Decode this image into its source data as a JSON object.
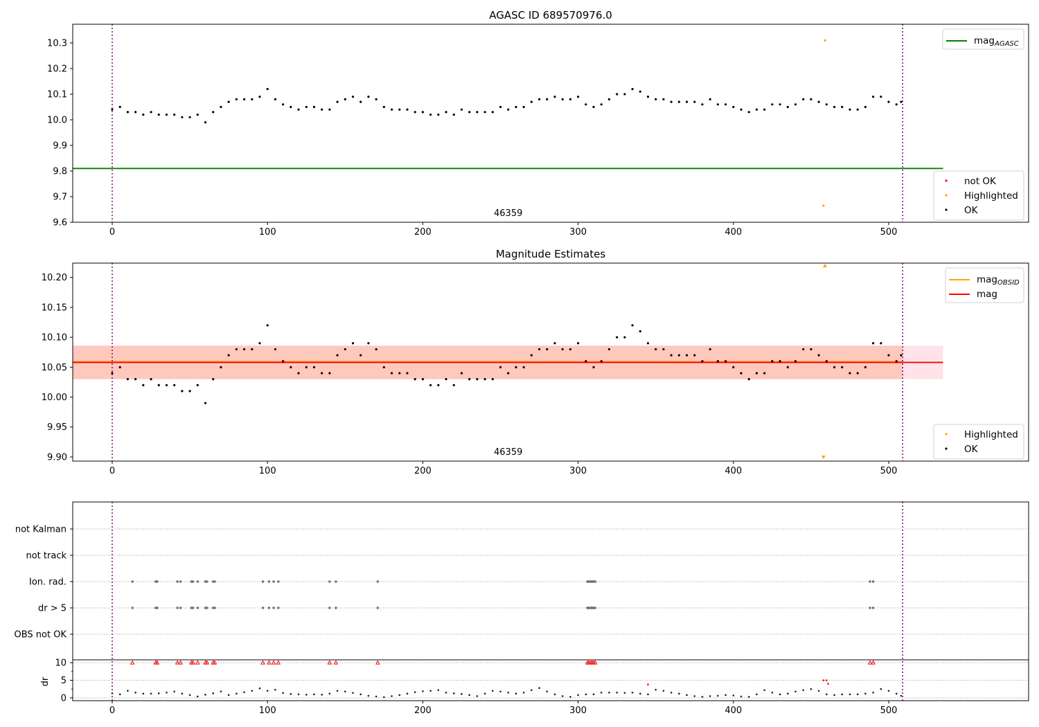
{
  "chart_data": [
    {
      "type": "scatter",
      "title": "AGASC ID 689570976.0",
      "xlim": [
        -25,
        590
      ],
      "ylim": [
        9.6,
        10.373
      ],
      "xticks": [
        "0",
        "100",
        "200",
        "300",
        "400",
        "500"
      ],
      "yticks": [
        "9.6",
        "9.7",
        "9.8",
        "9.9",
        "10.0",
        "10.1",
        "10.2",
        "10.3"
      ],
      "annotation": "46359",
      "annotation_x": 255,
      "obs_bounds": [
        0,
        509
      ],
      "mag_agasc": 9.81,
      "mag_agasc_xrange": [
        -25,
        535
      ],
      "highlighted": [
        {
          "x": 459,
          "y": 10.31
        },
        {
          "x": 458,
          "y": 9.665
        }
      ],
      "legend_lines": [
        {
          "label": "mag",
          "sub": "AGASC",
          "color": "#008000"
        }
      ],
      "legend_points": [
        {
          "label": "not OK",
          "color": "#ff0000"
        },
        {
          "label": "Highlighted",
          "color": "#ffa500"
        },
        {
          "label": "OK",
          "color": "#000000"
        }
      ]
    },
    {
      "type": "scatter",
      "title": "Magnitude Estimates",
      "xlim": [
        -25,
        590
      ],
      "ylim": [
        9.893,
        10.224
      ],
      "xticks": [
        "0",
        "100",
        "200",
        "300",
        "400",
        "500"
      ],
      "yticks": [
        "9.90",
        "9.95",
        "10.00",
        "10.05",
        "10.10",
        "10.15",
        "10.20"
      ],
      "annotation": "46359",
      "annotation_x": 255,
      "obs_bounds": [
        0,
        509
      ],
      "mag": 10.058,
      "mag_band": [
        10.03,
        10.086
      ],
      "mag_xrange": [
        -25,
        535
      ],
      "mag_obsid_band": [
        10.03,
        10.086
      ],
      "highlighted_clipped": [
        {
          "x": 459,
          "dir": "up"
        },
        {
          "x": 458,
          "dir": "down"
        }
      ],
      "legend_lines": [
        {
          "label": "mag",
          "sub": "OBSID",
          "color": "#ffa500"
        },
        {
          "label": "mag",
          "sub": "",
          "color": "#ff0000"
        }
      ],
      "legend_points": [
        {
          "label": "Highlighted",
          "color": "#ffa500"
        },
        {
          "label": "OK",
          "color": "#000000"
        }
      ]
    },
    {
      "type": "scatter",
      "title": "",
      "categories": [
        "OBS not OK",
        "dr > 5",
        "Ion. rad.",
        "not track",
        "not Kalman"
      ],
      "flag_x": {
        "dr > 5": [
          13,
          28,
          29,
          42,
          44,
          51,
          52,
          55,
          60,
          61,
          65,
          66,
          97,
          101,
          104,
          107,
          140,
          144,
          171,
          306,
          307,
          308,
          309,
          310,
          311,
          488,
          490
        ],
        "Ion. rad.": [
          13,
          28,
          29,
          42,
          44,
          51,
          52,
          55,
          60,
          61,
          65,
          66,
          97,
          101,
          104,
          107,
          140,
          144,
          171,
          306,
          307,
          308,
          309,
          310,
          311,
          488,
          490
        ],
        "not track": [],
        "not Kalman": [],
        "OBS not OK": []
      },
      "dr_label": "dr",
      "dr_ylim": [
        -0.8,
        10.8
      ],
      "dr_yticks": [
        "0",
        "5",
        "10"
      ],
      "dr_clipped_x": [
        13,
        28,
        29,
        42,
        44,
        51,
        52,
        55,
        60,
        61,
        65,
        66,
        97,
        101,
        104,
        107,
        140,
        144,
        171,
        306,
        307,
        308,
        309,
        310,
        311,
        488,
        490
      ],
      "dr_red_points": [
        {
          "x": 345,
          "y": 3.8
        },
        {
          "x": 458,
          "y": 5.0
        },
        {
          "x": 460,
          "y": 5.0
        },
        {
          "x": 461,
          "y": 4.0
        }
      ],
      "xticks": [
        "0",
        "100",
        "200",
        "300",
        "400",
        "500"
      ],
      "obs_bounds": [
        0,
        509
      ]
    }
  ],
  "series": {
    "x": [
      0,
      5,
      10,
      15,
      20,
      25,
      30,
      35,
      40,
      45,
      50,
      55,
      60,
      65,
      70,
      75,
      80,
      85,
      90,
      95,
      100,
      105,
      110,
      115,
      120,
      125,
      130,
      135,
      140,
      145,
      150,
      155,
      160,
      165,
      170,
      175,
      180,
      185,
      190,
      195,
      200,
      205,
      210,
      215,
      220,
      225,
      230,
      235,
      240,
      245,
      250,
      255,
      260,
      265,
      270,
      275,
      280,
      285,
      290,
      295,
      300,
      305,
      310,
      315,
      320,
      325,
      330,
      335,
      340,
      345,
      350,
      355,
      360,
      365,
      370,
      375,
      380,
      385,
      390,
      395,
      400,
      405,
      410,
      415,
      420,
      425,
      430,
      435,
      440,
      445,
      450,
      455,
      460,
      465,
      470,
      475,
      480,
      485,
      490,
      495,
      500,
      505,
      508
    ],
    "mag": [
      10.04,
      10.05,
      10.03,
      10.03,
      10.02,
      10.03,
      10.02,
      10.02,
      10.02,
      10.01,
      10.01,
      10.02,
      9.99,
      10.03,
      10.05,
      10.07,
      10.08,
      10.08,
      10.08,
      10.09,
      10.12,
      10.08,
      10.06,
      10.05,
      10.04,
      10.05,
      10.05,
      10.04,
      10.04,
      10.07,
      10.08,
      10.09,
      10.07,
      10.09,
      10.08,
      10.05,
      10.04,
      10.04,
      10.04,
      10.03,
      10.03,
      10.02,
      10.02,
      10.03,
      10.02,
      10.04,
      10.03,
      10.03,
      10.03,
      10.03,
      10.05,
      10.04,
      10.05,
      10.05,
      10.07,
      10.08,
      10.08,
      10.09,
      10.08,
      10.08,
      10.09,
      10.06,
      10.05,
      10.06,
      10.08,
      10.1,
      10.1,
      10.12,
      10.11,
      10.09,
      10.08,
      10.08,
      10.07,
      10.07,
      10.07,
      10.07,
      10.06,
      10.08,
      10.06,
      10.06,
      10.05,
      10.04,
      10.03,
      10.04,
      10.04,
      10.06,
      10.06,
      10.05,
      10.06,
      10.08,
      10.08,
      10.07,
      10.06,
      10.05,
      10.05,
      10.04,
      10.04,
      10.05,
      10.09,
      10.09,
      10.07,
      10.06,
      10.07
    ],
    "dr": [
      1.3,
      1.0,
      2.0,
      1.5,
      1.2,
      1.2,
      1.3,
      1.5,
      1.8,
      1.2,
      0.8,
      0.4,
      0.9,
      1.3,
      1.8,
      0.8,
      1.2,
      1.6,
      2.0,
      2.7,
      2.0,
      2.3,
      1.4,
      1.1,
      1.0,
      0.9,
      1.0,
      0.9,
      1.2,
      2.0,
      1.8,
      1.4,
      1.0,
      0.6,
      0.4,
      0.2,
      0.5,
      0.8,
      1.2,
      1.6,
      1.9,
      2.0,
      2.2,
      1.5,
      1.3,
      1.1,
      0.8,
      0.5,
      1.2,
      2.0,
      1.8,
      1.5,
      1.2,
      1.5,
      2.2,
      2.8,
      1.8,
      1.0,
      0.5,
      0.3,
      0.8,
      1.0,
      1.0,
      1.5,
      1.5,
      1.5,
      1.4,
      1.5,
      1.2,
      1.0,
      2.3,
      2.0,
      1.5,
      1.2,
      0.8,
      0.5,
      0.3,
      0.5,
      0.6,
      0.8,
      0.7,
      0.4,
      0.3,
      1.0,
      2.2,
      1.5,
      1.0,
      1.2,
      1.8,
      2.2,
      2.5,
      2.0,
      1.0,
      0.8,
      1.0,
      1.0,
      1.0,
      1.2,
      1.5,
      2.5,
      2.0,
      1.2,
      0.6
    ]
  },
  "colors": {
    "ok": "#000000",
    "not_ok": "#ff0000",
    "highlighted": "#ffa500",
    "agasc": "#008000",
    "obs_line": "#800080",
    "band": "#ffc0cb",
    "obsid_band": "#ffa07a"
  }
}
